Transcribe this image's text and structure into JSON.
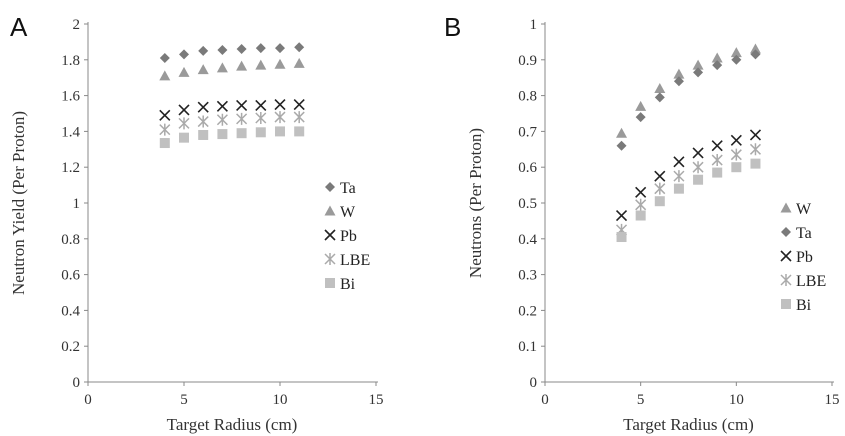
{
  "chart_data": [
    {
      "type": "scatter",
      "panel_label": "A",
      "xlabel": "Target Radius (cm)",
      "ylabel": "Neutron Yield (Per Proton)",
      "xlim": [
        0,
        15
      ],
      "ylim": [
        0,
        2
      ],
      "x_ticks": [
        "0",
        "5",
        "10",
        "15"
      ],
      "y_ticks": [
        "0",
        "0.2",
        "0.4",
        "0.6",
        "0.8",
        "1",
        "1.2",
        "1.4",
        "1.6",
        "1.8",
        "2"
      ],
      "grid": false,
      "legend_position": "right-middle",
      "x": [
        4,
        5,
        6,
        7,
        8,
        9,
        10,
        11
      ],
      "series": [
        {
          "name": "Ta",
          "marker": "diamond",
          "color": "#7a7a7a",
          "values": [
            1.81,
            1.83,
            1.85,
            1.855,
            1.86,
            1.865,
            1.865,
            1.87
          ]
        },
        {
          "name": "W",
          "marker": "triangle",
          "color": "#9a9a9a",
          "values": [
            1.71,
            1.73,
            1.745,
            1.755,
            1.765,
            1.77,
            1.775,
            1.78
          ]
        },
        {
          "name": "Pb",
          "marker": "x",
          "color": "#222222",
          "values": [
            1.49,
            1.52,
            1.535,
            1.54,
            1.545,
            1.545,
            1.55,
            1.55
          ]
        },
        {
          "name": "LBE",
          "marker": "star",
          "color": "#aaaaaa",
          "values": [
            1.41,
            1.445,
            1.455,
            1.465,
            1.47,
            1.475,
            1.48,
            1.48
          ]
        },
        {
          "name": "Bi",
          "marker": "square",
          "color": "#c0c0c0",
          "values": [
            1.335,
            1.365,
            1.38,
            1.385,
            1.39,
            1.395,
            1.4,
            1.4
          ]
        }
      ]
    },
    {
      "type": "scatter",
      "panel_label": "B",
      "xlabel": "Target Radius (cm)",
      "ylabel": "Neutrons (Per Proton)",
      "xlim": [
        0,
        15
      ],
      "ylim": [
        0,
        1
      ],
      "x_ticks": [
        "0",
        "5",
        "10",
        "15"
      ],
      "y_ticks": [
        "0",
        "0.1",
        "0.2",
        "0.3",
        "0.4",
        "0.5",
        "0.6",
        "0.7",
        "0.8",
        "0.9",
        "1"
      ],
      "grid": false,
      "legend_position": "right-bottom",
      "x": [
        4,
        5,
        6,
        7,
        8,
        9,
        10,
        11
      ],
      "series": [
        {
          "name": "W",
          "marker": "triangle",
          "color": "#9a9a9a",
          "values": [
            0.695,
            0.77,
            0.82,
            0.86,
            0.885,
            0.905,
            0.92,
            0.93
          ]
        },
        {
          "name": "Ta",
          "marker": "diamond",
          "color": "#7a7a7a",
          "values": [
            0.66,
            0.74,
            0.795,
            0.84,
            0.865,
            0.885,
            0.9,
            0.915
          ]
        },
        {
          "name": "Pb",
          "marker": "x",
          "color": "#222222",
          "values": [
            0.465,
            0.53,
            0.575,
            0.615,
            0.64,
            0.66,
            0.675,
            0.69
          ]
        },
        {
          "name": "LBE",
          "marker": "star",
          "color": "#aaaaaa",
          "values": [
            0.425,
            0.495,
            0.54,
            0.575,
            0.6,
            0.62,
            0.635,
            0.65
          ]
        },
        {
          "name": "Bi",
          "marker": "square",
          "color": "#c0c0c0",
          "values": [
            0.405,
            0.465,
            0.505,
            0.54,
            0.565,
            0.585,
            0.6,
            0.61
          ]
        }
      ]
    }
  ]
}
